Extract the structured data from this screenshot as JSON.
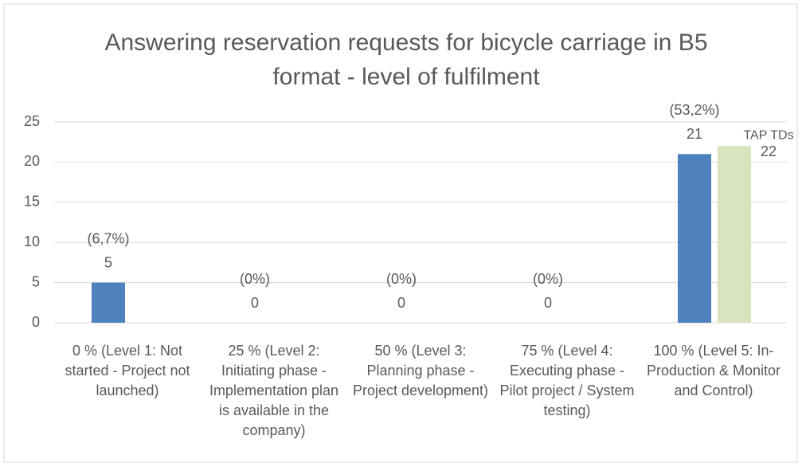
{
  "chart_data": {
    "type": "bar",
    "title": "Answering reservation requests for bicycle carriage in B5 format - level of fulfilment",
    "categories": [
      "0 % (Level 1: Not started - Project not launched)",
      "25 % (Level 2: Initiating phase - Implementation plan is available in the company)",
      "50 % (Level 3: Planning phase - Project development)",
      "75 % (Level 4: Executing phase - Pilot project / System testing)",
      "100 % (Level 5: In-Production & Monitor and Control)"
    ],
    "series": [
      {
        "color": "#4f81bd",
        "values": [
          5,
          0,
          0,
          0,
          21
        ],
        "percent_labels": [
          "(6,7%)",
          "(0%)",
          "(0%)",
          "(0%)",
          "(53,2%)"
        ]
      },
      {
        "name": "TAP TDs",
        "color": "#d7e4bd",
        "values": [
          null,
          null,
          null,
          null,
          22
        ]
      }
    ],
    "ylim": [
      0,
      25
    ],
    "yticks": [
      0,
      5,
      10,
      15,
      20,
      25
    ],
    "grid": true
  }
}
